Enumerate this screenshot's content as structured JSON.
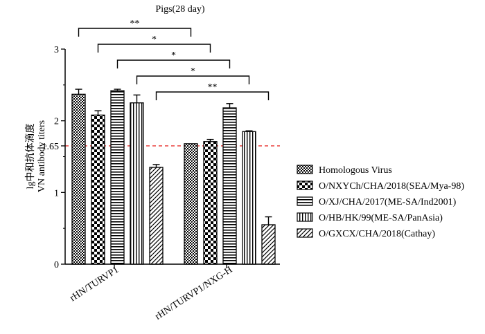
{
  "chart_data": {
    "type": "bar",
    "title": "Pigs(28 day)",
    "ylabel_line1": "lg中和抗体滴度",
    "ylabel_line2": "VN antibody titers",
    "xlabel": "",
    "ylim": [
      0,
      3
    ],
    "y_ticks": [
      {
        "value": 0,
        "label": "0"
      },
      {
        "value": 1,
        "label": "1"
      },
      {
        "value": 1.65,
        "label": "1.65"
      },
      {
        "value": 2,
        "label": "2"
      },
      {
        "value": 3,
        "label": "3"
      }
    ],
    "threshold": {
      "value": 1.65,
      "color": "#e8312f"
    },
    "categories": [
      "rHN/TURVP1",
      "rHN/TURVP1/NXG-H"
    ],
    "series": [
      {
        "name": "Homologous Virus",
        "pattern": "dots",
        "values": [
          2.37,
          1.68
        ],
        "errors": [
          0.07,
          0.0
        ]
      },
      {
        "name": "O/NXYCh/CHA/2018(SEA/Mya-98)",
        "pattern": "checker",
        "values": [
          2.08,
          1.71
        ],
        "errors": [
          0.06,
          0.03
        ]
      },
      {
        "name": "O/XJ/CHA/2017(ME-SA/Ind2001)",
        "pattern": "hlines",
        "values": [
          2.42,
          2.18
        ],
        "errors": [
          0.02,
          0.06
        ]
      },
      {
        "name": "O/HB/HK/99(ME-SA/PanAsia)",
        "pattern": "vlines",
        "values": [
          2.25,
          1.85
        ],
        "errors": [
          0.11,
          0.01
        ]
      },
      {
        "name": "O/GXCX/CHA/2018(Cathay)",
        "pattern": "diag",
        "values": [
          1.35,
          0.55
        ],
        "errors": [
          0.04,
          0.11
        ]
      }
    ],
    "significance": [
      {
        "label": "**"
      },
      {
        "label": "*"
      },
      {
        "label": "*"
      },
      {
        "label": "*"
      },
      {
        "label": "**"
      }
    ],
    "legend_position": "right",
    "grid": false
  }
}
